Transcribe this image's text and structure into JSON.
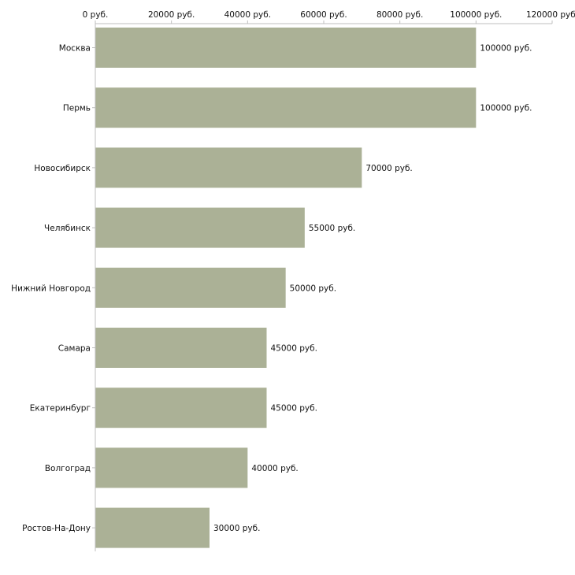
{
  "chart_data": {
    "type": "bar",
    "orientation": "horizontal",
    "title": "",
    "xlabel": "",
    "ylabel": "",
    "xlim": [
      0,
      120000
    ],
    "grid": false,
    "bar_color": "#abb196",
    "axis_ticks": [
      {
        "value": 0,
        "label": "0 руб."
      },
      {
        "value": 20000,
        "label": "20000 руб."
      },
      {
        "value": 40000,
        "label": "40000 руб."
      },
      {
        "value": 60000,
        "label": "60000 руб."
      },
      {
        "value": 80000,
        "label": "80000 руб."
      },
      {
        "value": 100000,
        "label": "100000 руб."
      },
      {
        "value": 120000,
        "label": "120000 руб."
      }
    ],
    "categories": [
      "Москва",
      "Пермь",
      "Новосибирск",
      "Челябинск",
      "Нижний Новгород",
      "Самара",
      "Екатеринбург",
      "Волгоград",
      "Ростов-На-Дону"
    ],
    "values": [
      100000,
      100000,
      70000,
      55000,
      50000,
      45000,
      45000,
      40000,
      30000
    ],
    "value_labels": [
      "100000 руб.",
      "100000 руб.",
      "70000 руб.",
      "55000 руб.",
      "50000 руб.",
      "45000 руб.",
      "45000 руб.",
      "40000 руб.",
      "30000 руб."
    ]
  }
}
